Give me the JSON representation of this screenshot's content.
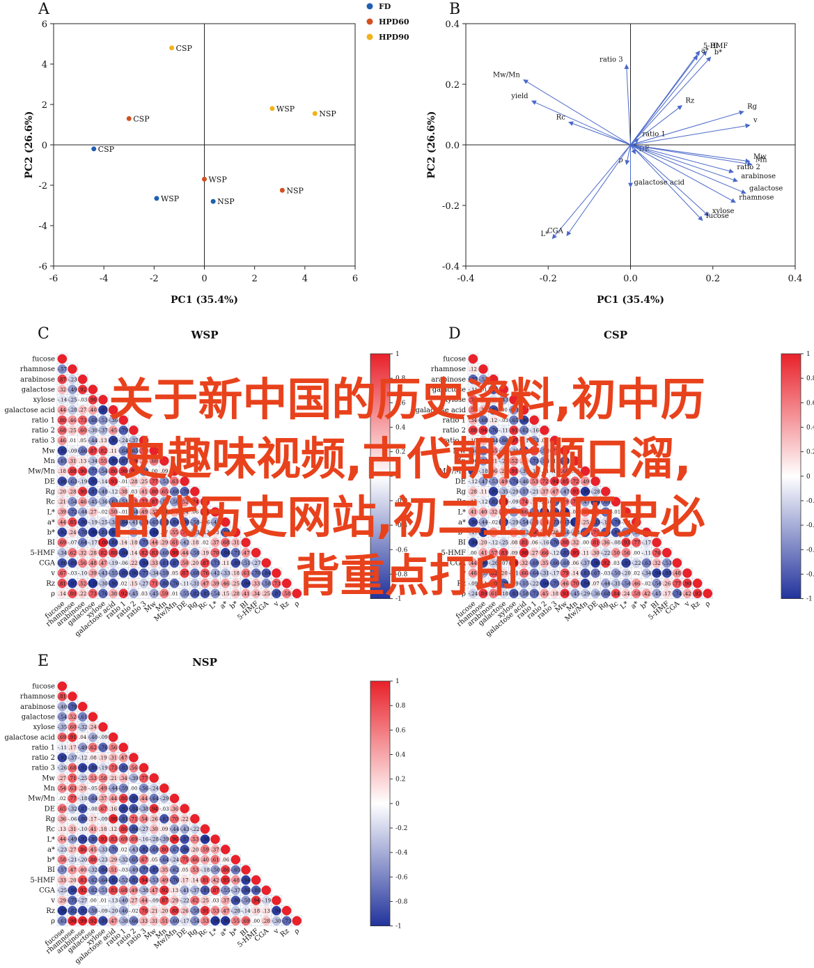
{
  "overlay_title": {
    "lines": [
      "关于新中国的历史资料,初中历",
      "史趣味视频,古代朝代顺口溜,",
      "古代历史网站,初二上册历史必",
      "背重点打印"
    ],
    "color": "#e8421c"
  },
  "colors": {
    "fd": "#1f5fb2",
    "hpd60": "#d35020",
    "hpd90": "#f2b21b",
    "arrow": "#4a68c9",
    "pos": "#e8212a",
    "neg": "#22339c",
    "grid": "#c9d4e6"
  },
  "chart_data": [
    {
      "panel_label": "A",
      "type": "scatter",
      "title": "",
      "xlabel": "PC1 (35.4%)",
      "ylabel": "PC2 (26.6%)",
      "xlim": [
        -6,
        6
      ],
      "ylim": [
        -6,
        6
      ],
      "xticks": [
        "-6",
        "-4",
        "-2",
        "0",
        "2",
        "4",
        "6"
      ],
      "yticks": [
        "6",
        "4",
        "2",
        "0",
        "-2",
        "-4",
        "-6"
      ],
      "legend": [
        "FD",
        "HPD60",
        "HPD90"
      ],
      "legend_position": "top-right",
      "points": [
        {
          "x": -1.3,
          "y": 4.8,
          "label": "CSP",
          "group": "HPD90"
        },
        {
          "x": -3.0,
          "y": 1.3,
          "label": "CSP",
          "group": "HPD60"
        },
        {
          "x": -4.4,
          "y": -0.2,
          "label": "CSP",
          "group": "FD"
        },
        {
          "x": 2.7,
          "y": 1.8,
          "label": "WSP",
          "group": "HPD90"
        },
        {
          "x": 4.4,
          "y": 1.55,
          "label": "NSP",
          "group": "HPD90"
        },
        {
          "x": 0.0,
          "y": -1.7,
          "label": "WSP",
          "group": "HPD60"
        },
        {
          "x": -1.9,
          "y": -2.65,
          "label": "WSP",
          "group": "FD"
        },
        {
          "x": 0.35,
          "y": -2.8,
          "label": "NSP",
          "group": "FD"
        },
        {
          "x": 3.1,
          "y": -2.25,
          "label": "NSP",
          "group": "HPD60"
        }
      ]
    },
    {
      "panel_label": "B",
      "type": "biplot",
      "title": "",
      "xlabel": "PC1 (35.4%)",
      "ylabel": "PC2 (26.6%)",
      "xlim": [
        -0.4,
        0.4
      ],
      "ylim": [
        -0.4,
        0.4
      ],
      "xticks": [
        "-0.4",
        "-0.2",
        "0.0",
        "0.2",
        "0.4"
      ],
      "yticks": [
        "0.4",
        "0.2",
        "0.0",
        "-0.2",
        "-0.4"
      ],
      "vectors": [
        {
          "label": "5-HMF",
          "x": 0.168,
          "y": 0.31
        },
        {
          "label": "BI",
          "x": 0.185,
          "y": 0.31
        },
        {
          "label": "a*",
          "x": 0.163,
          "y": 0.295
        },
        {
          "label": "b*",
          "x": 0.195,
          "y": 0.29
        },
        {
          "label": "ratio 3",
          "x": -0.01,
          "y": 0.265
        },
        {
          "label": "Mw/Mn",
          "x": -0.26,
          "y": 0.215
        },
        {
          "label": "yield",
          "x": -0.24,
          "y": 0.145
        },
        {
          "label": "Rc",
          "x": -0.15,
          "y": 0.075
        },
        {
          "label": "Rz",
          "x": 0.125,
          "y": 0.13
        },
        {
          "label": "Rg",
          "x": 0.275,
          "y": 0.11
        },
        {
          "label": "v",
          "x": 0.29,
          "y": 0.065
        },
        {
          "label": "ratio 1",
          "x": 0.02,
          "y": 0.02
        },
        {
          "label": "DE",
          "x": 0.012,
          "y": -0.03
        },
        {
          "label": "ρ",
          "x": -0.01,
          "y": -0.065
        },
        {
          "label": "galactose acid",
          "x": 0.0,
          "y": -0.14
        },
        {
          "label": "Mw",
          "x": 0.29,
          "y": -0.055
        },
        {
          "label": "Mn",
          "x": 0.295,
          "y": -0.065
        },
        {
          "label": "ratio 2",
          "x": 0.25,
          "y": -0.09
        },
        {
          "label": "arabinose",
          "x": 0.26,
          "y": -0.12
        },
        {
          "label": "galactose",
          "x": 0.28,
          "y": -0.16
        },
        {
          "label": "rhamnose",
          "x": 0.255,
          "y": -0.19
        },
        {
          "label": "xylose",
          "x": 0.19,
          "y": -0.235
        },
        {
          "label": "fucose",
          "x": 0.175,
          "y": -0.25
        },
        {
          "label": "L*",
          "x": -0.19,
          "y": -0.31
        },
        {
          "label": "CGA",
          "x": -0.155,
          "y": -0.3
        }
      ]
    },
    {
      "panel_label": "C",
      "type": "heatmap",
      "title": "WSP",
      "variables": [
        "fucose",
        "rhamnose",
        "arabinose",
        "galactose",
        "xylose",
        "galactose acid",
        "ratio 1",
        "ratio 2",
        "ratio 3",
        "Mw",
        "Mn",
        "Mw/Mn",
        "DE",
        "Rg",
        "Rc",
        "L*",
        "a*",
        "b*",
        "BI",
        "5-HMF",
        "CGA",
        "v",
        "Rz",
        "ρ"
      ],
      "colorbar_ticks": [
        "1",
        "0.8",
        "0.6",
        "0.4",
        "0.2",
        "0",
        "-0.2",
        "-0.4",
        "-0.6",
        "-0.8",
        "-1"
      ],
      "cell_values_seed": 3
    },
    {
      "panel_label": "D",
      "type": "heatmap",
      "title": "CSP",
      "variables": [
        "fucose",
        "rhamnose",
        "arabinose",
        "galactose",
        "xylose",
        "galactose acid",
        "ratio 1",
        "ratio 2",
        "ratio 3",
        "Mw",
        "Mn",
        "Mw/Mn",
        "DE",
        "Rg",
        "Rc",
        "L*",
        "a*",
        "b*",
        "BI",
        "5-HMF",
        "CGA",
        "v",
        "Rz",
        "ρ"
      ],
      "colorbar_ticks": [
        "1",
        "0.8",
        "0.6",
        "0.4",
        "0.2",
        "0",
        "-0.2",
        "-0.4",
        "-0.6",
        "-0.8",
        "-1"
      ],
      "cell_values_seed": 7
    },
    {
      "panel_label": "E",
      "type": "heatmap",
      "title": "NSP",
      "variables": [
        "fucose",
        "rhamnose",
        "arabinose",
        "galactose",
        "xylose",
        "galactose acid",
        "ratio 1",
        "ratio 2",
        "ratio 3",
        "Mw",
        "Mn",
        "Mw/Mn",
        "DE",
        "Rg",
        "Rc",
        "L*",
        "a*",
        "b*",
        "BI",
        "5-HMF",
        "CGA",
        "v",
        "Rz",
        "ρ"
      ],
      "colorbar_ticks": [
        "1",
        "0.8",
        "0.6",
        "0.4",
        "0.2",
        "0",
        "-0.2",
        "-0.4",
        "-0.6",
        "-0.8",
        "-1"
      ],
      "cell_values_seed": 11
    }
  ]
}
